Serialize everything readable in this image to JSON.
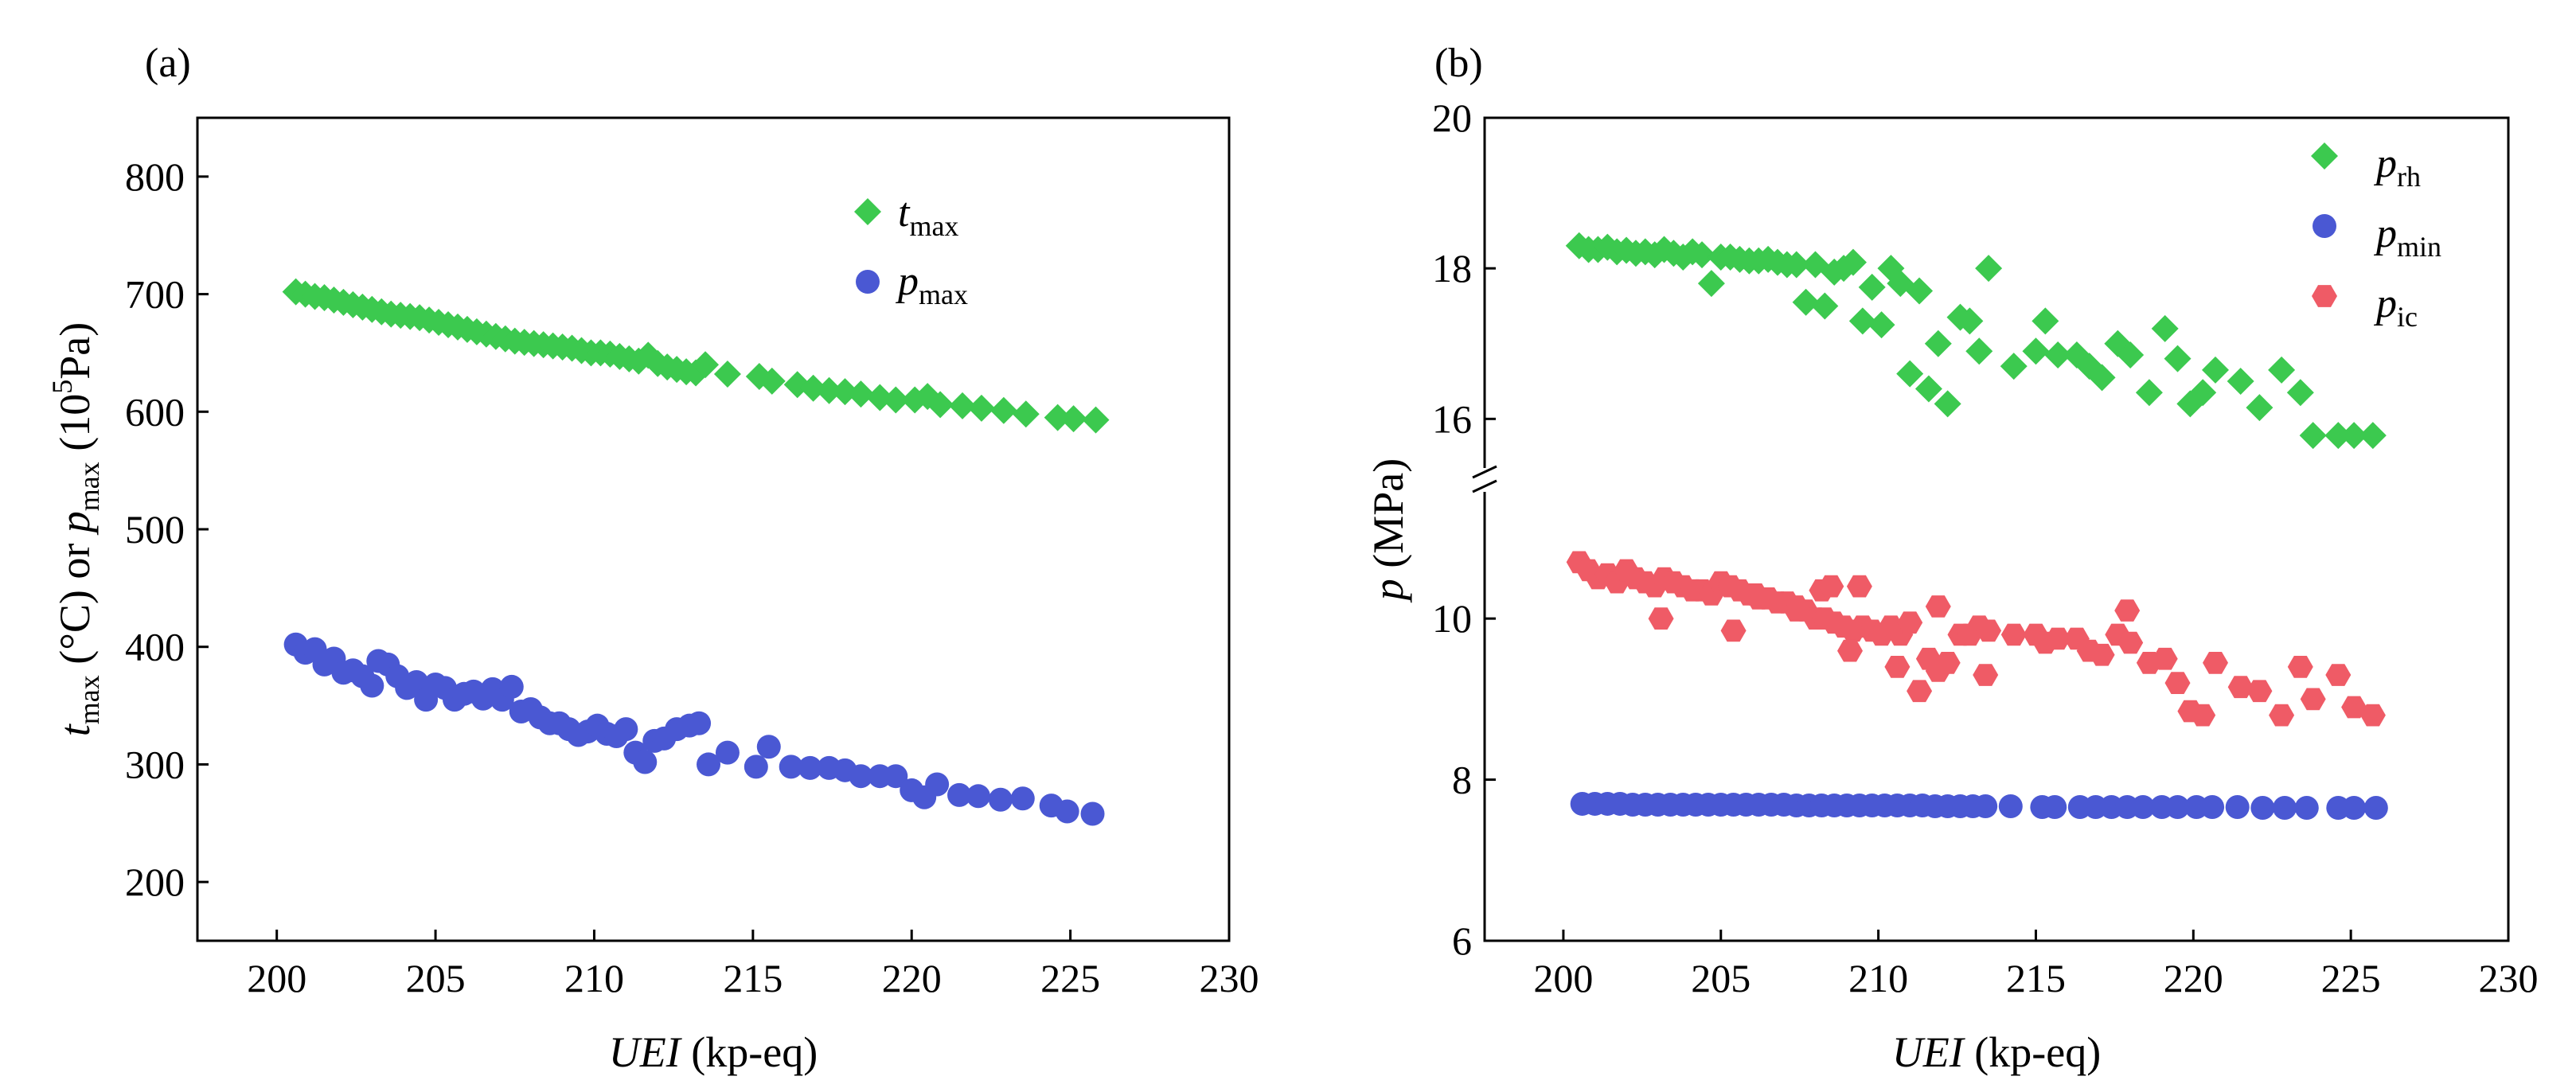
{
  "chart_data": [
    {
      "type": "scatter",
      "panel_label": "(a)",
      "xlabel_italic": "UEI",
      "xlabel_rest": " (kp-eq)",
      "ylabel": {
        "t": "t",
        "t_sub": "max",
        "mid": " (°C) or ",
        "p": "p",
        "p_sub": "max",
        "unit_pre": " (10",
        "unit_sup": "5",
        "unit_post": "Pa)"
      },
      "xlim": [
        197.5,
        230
      ],
      "ylim": [
        150,
        850
      ],
      "xticks": [
        200,
        205,
        210,
        215,
        220,
        225,
        230
      ],
      "yticks": [
        200,
        300,
        400,
        500,
        600,
        700,
        800
      ],
      "legend_position": "top-right",
      "series": [
        {
          "name": "t",
          "name_sub": "max",
          "marker": "diamond",
          "color": "#3cc94f",
          "x": [
            200.6,
            200.9,
            201.2,
            201.5,
            201.8,
            202.1,
            202.4,
            202.7,
            203.0,
            203.3,
            203.6,
            203.9,
            204.2,
            204.5,
            204.8,
            205.1,
            205.4,
            205.7,
            206.0,
            206.3,
            206.6,
            206.9,
            207.2,
            207.5,
            207.8,
            208.1,
            208.4,
            208.7,
            209.0,
            209.3,
            209.6,
            209.9,
            210.2,
            210.5,
            210.8,
            211.1,
            211.4,
            211.7,
            212.0,
            212.3,
            212.6,
            212.9,
            213.2,
            213.5,
            214.2,
            215.2,
            215.6,
            216.4,
            216.9,
            217.4,
            217.9,
            218.4,
            219.0,
            219.5,
            220.1,
            220.5,
            220.9,
            221.6,
            222.2,
            222.9,
            223.6,
            224.6,
            225.1,
            225.8
          ],
          "y": [
            702,
            700,
            698,
            697,
            695,
            693,
            691,
            689,
            687,
            685,
            683,
            682,
            681,
            680,
            678,
            676,
            674,
            672,
            670,
            668,
            666,
            664,
            662,
            660,
            659,
            658,
            657,
            656,
            655,
            654,
            652,
            650,
            650,
            649,
            647,
            645,
            643,
            648,
            641,
            638,
            636,
            634,
            633,
            640,
            632,
            630,
            626,
            623,
            620,
            618,
            617,
            615,
            612,
            610,
            610,
            613,
            606,
            605,
            603,
            601,
            598,
            595,
            594,
            593
          ]
        },
        {
          "name": "p",
          "name_sub": "max",
          "marker": "circle",
          "color": "#4a58d3",
          "x": [
            200.6,
            200.9,
            201.2,
            201.5,
            201.8,
            202.1,
            202.4,
            202.7,
            203.0,
            203.2,
            203.5,
            203.8,
            204.1,
            204.4,
            204.7,
            205.0,
            205.3,
            205.6,
            205.9,
            206.2,
            206.5,
            206.8,
            207.1,
            207.4,
            207.7,
            208.0,
            208.3,
            208.6,
            208.9,
            209.2,
            209.5,
            209.8,
            210.1,
            210.4,
            210.7,
            211.0,
            211.3,
            211.6,
            211.9,
            212.2,
            212.6,
            213.0,
            213.3,
            213.6,
            214.2,
            215.1,
            215.5,
            216.2,
            216.8,
            217.4,
            217.9,
            218.4,
            219.0,
            219.5,
            220.0,
            220.4,
            220.8,
            221.5,
            222.1,
            222.8,
            223.5,
            224.4,
            224.9,
            225.7
          ],
          "y": [
            402,
            395,
            398,
            385,
            390,
            378,
            380,
            375,
            367,
            388,
            385,
            375,
            365,
            370,
            355,
            368,
            365,
            355,
            360,
            362,
            356,
            364,
            355,
            366,
            345,
            347,
            340,
            335,
            335,
            330,
            325,
            328,
            333,
            326,
            324,
            330,
            310,
            302,
            320,
            322,
            330,
            333,
            335,
            300,
            310,
            298,
            315,
            298,
            297,
            297,
            295,
            290,
            290,
            290,
            278,
            272,
            283,
            274,
            273,
            270,
            271,
            265,
            260,
            258
          ]
        }
      ]
    },
    {
      "type": "scatter",
      "panel_label": "(b)",
      "xlabel_italic": "UEI",
      "xlabel_rest": " (kp-eq)",
      "ylabel_italic": "p",
      "ylabel_rest": " (MPa)",
      "xlim": [
        197.5,
        230
      ],
      "y_axis_break": {
        "lower_range": [
          6,
          11.8
        ],
        "upper_range": [
          15.2,
          20
        ]
      },
      "xticks": [
        200,
        205,
        210,
        215,
        220,
        225,
        230
      ],
      "yticks": [
        6,
        8,
        10,
        16,
        18,
        20
      ],
      "legend_position": "top-right",
      "series": [
        {
          "name": "p",
          "name_sub": "rh",
          "marker": "diamond",
          "color": "#3cc94f",
          "x": [
            200.5,
            200.8,
            201.1,
            201.4,
            201.7,
            202.0,
            202.3,
            202.6,
            202.9,
            203.2,
            203.5,
            203.8,
            204.1,
            204.4,
            204.7,
            205.0,
            205.3,
            205.6,
            205.9,
            206.2,
            206.5,
            206.8,
            207.1,
            207.4,
            207.7,
            208.0,
            208.3,
            208.6,
            208.9,
            209.2,
            209.5,
            209.8,
            210.1,
            210.4,
            210.7,
            211.0,
            211.3,
            211.6,
            211.9,
            212.2,
            212.6,
            212.9,
            213.2,
            213.5,
            214.3,
            215.0,
            215.3,
            215.7,
            216.3,
            216.7,
            217.1,
            217.6,
            218.0,
            218.6,
            219.1,
            219.5,
            219.9,
            220.3,
            220.7,
            221.5,
            222.1,
            222.8,
            223.4,
            223.8,
            224.6,
            225.1,
            225.7
          ],
          "y": [
            18.3,
            18.25,
            18.25,
            18.28,
            18.22,
            18.24,
            18.2,
            18.22,
            18.18,
            18.25,
            18.2,
            18.15,
            18.22,
            18.18,
            17.8,
            18.15,
            18.15,
            18.12,
            18.1,
            18.1,
            18.12,
            18.08,
            18.05,
            18.05,
            17.55,
            18.05,
            17.5,
            17.95,
            18.0,
            18.08,
            17.3,
            17.75,
            17.25,
            18.0,
            17.8,
            16.6,
            17.7,
            16.4,
            17.0,
            16.2,
            17.35,
            17.3,
            16.9,
            18.0,
            16.7,
            16.9,
            17.3,
            16.85,
            16.85,
            16.7,
            16.55,
            17.0,
            16.85,
            16.35,
            17.2,
            16.8,
            16.2,
            16.35,
            16.65,
            16.5,
            16.15,
            16.65,
            16.35,
            15.78,
            15.78,
            15.78,
            15.78
          ]
        },
        {
          "name": "p",
          "name_sub": "min",
          "marker": "circle",
          "color": "#4a58d3",
          "x": [
            200.6,
            201.0,
            201.4,
            201.8,
            202.2,
            202.6,
            203.0,
            203.4,
            203.8,
            204.2,
            204.6,
            205.0,
            205.4,
            205.8,
            206.2,
            206.6,
            207.0,
            207.4,
            207.8,
            208.2,
            208.6,
            209.0,
            209.4,
            209.8,
            210.2,
            210.6,
            211.0,
            211.4,
            211.8,
            212.2,
            212.6,
            213.0,
            213.4,
            214.2,
            215.2,
            215.6,
            216.4,
            216.9,
            217.4,
            217.9,
            218.4,
            219.0,
            219.5,
            220.1,
            220.6,
            221.4,
            222.2,
            222.9,
            223.6,
            224.6,
            225.1,
            225.8
          ],
          "y": [
            7.7,
            7.7,
            7.7,
            7.7,
            7.69,
            7.69,
            7.69,
            7.69,
            7.69,
            7.69,
            7.69,
            7.69,
            7.69,
            7.69,
            7.69,
            7.69,
            7.69,
            7.68,
            7.68,
            7.68,
            7.68,
            7.68,
            7.68,
            7.68,
            7.68,
            7.68,
            7.68,
            7.68,
            7.67,
            7.67,
            7.67,
            7.67,
            7.67,
            7.67,
            7.66,
            7.66,
            7.66,
            7.66,
            7.66,
            7.66,
            7.66,
            7.66,
            7.66,
            7.66,
            7.66,
            7.66,
            7.65,
            7.65,
            7.65,
            7.65,
            7.65,
            7.65
          ]
        },
        {
          "name": "p",
          "name_sub": "ic",
          "marker": "hexagon",
          "color": "#ef5b66",
          "x": [
            200.5,
            200.8,
            201.1,
            201.4,
            201.7,
            202.0,
            202.3,
            202.6,
            202.9,
            203.2,
            203.5,
            203.8,
            204.1,
            204.4,
            204.7,
            205.0,
            205.3,
            205.6,
            205.9,
            206.2,
            206.5,
            206.8,
            207.1,
            207.4,
            207.7,
            208.0,
            208.3,
            208.6,
            208.9,
            209.2,
            209.5,
            209.8,
            210.1,
            210.4,
            210.7,
            211.0,
            211.3,
            211.6,
            211.9,
            212.2,
            212.6,
            212.9,
            213.2,
            213.5,
            214.3,
            215.0,
            215.3,
            215.7,
            216.3,
            216.7,
            217.1,
            217.6,
            218.0,
            218.6,
            219.1,
            219.5,
            219.9,
            220.3,
            220.7,
            221.5,
            222.1,
            222.8,
            223.4,
            223.8,
            224.6,
            225.1,
            225.7,
            203.1,
            205.4,
            206.1,
            207.4,
            208.2,
            208.5,
            209.1,
            209.4,
            210.6,
            211.9,
            213.4,
            217.9
          ],
          "y": [
            10.7,
            10.6,
            10.5,
            10.55,
            10.45,
            10.6,
            10.5,
            10.45,
            10.4,
            10.5,
            10.45,
            10.4,
            10.35,
            10.35,
            10.3,
            10.45,
            10.4,
            10.35,
            10.3,
            10.25,
            10.25,
            10.2,
            10.2,
            10.15,
            10.1,
            10.0,
            10.0,
            9.95,
            9.9,
            9.85,
            9.9,
            9.85,
            9.8,
            9.9,
            9.8,
            9.95,
            9.1,
            9.5,
            9.35,
            9.45,
            9.8,
            9.8,
            9.9,
            9.85,
            9.8,
            9.8,
            9.7,
            9.75,
            9.75,
            9.6,
            9.55,
            9.8,
            9.7,
            9.45,
            9.5,
            9.2,
            8.85,
            8.8,
            9.45,
            9.15,
            9.1,
            8.8,
            9.4,
            9.0,
            9.3,
            8.9,
            8.8,
            10.0,
            9.85,
            10.3,
            10.1,
            10.35,
            10.4,
            9.6,
            10.4,
            9.4,
            10.15,
            9.3,
            10.1
          ]
        }
      ]
    }
  ]
}
